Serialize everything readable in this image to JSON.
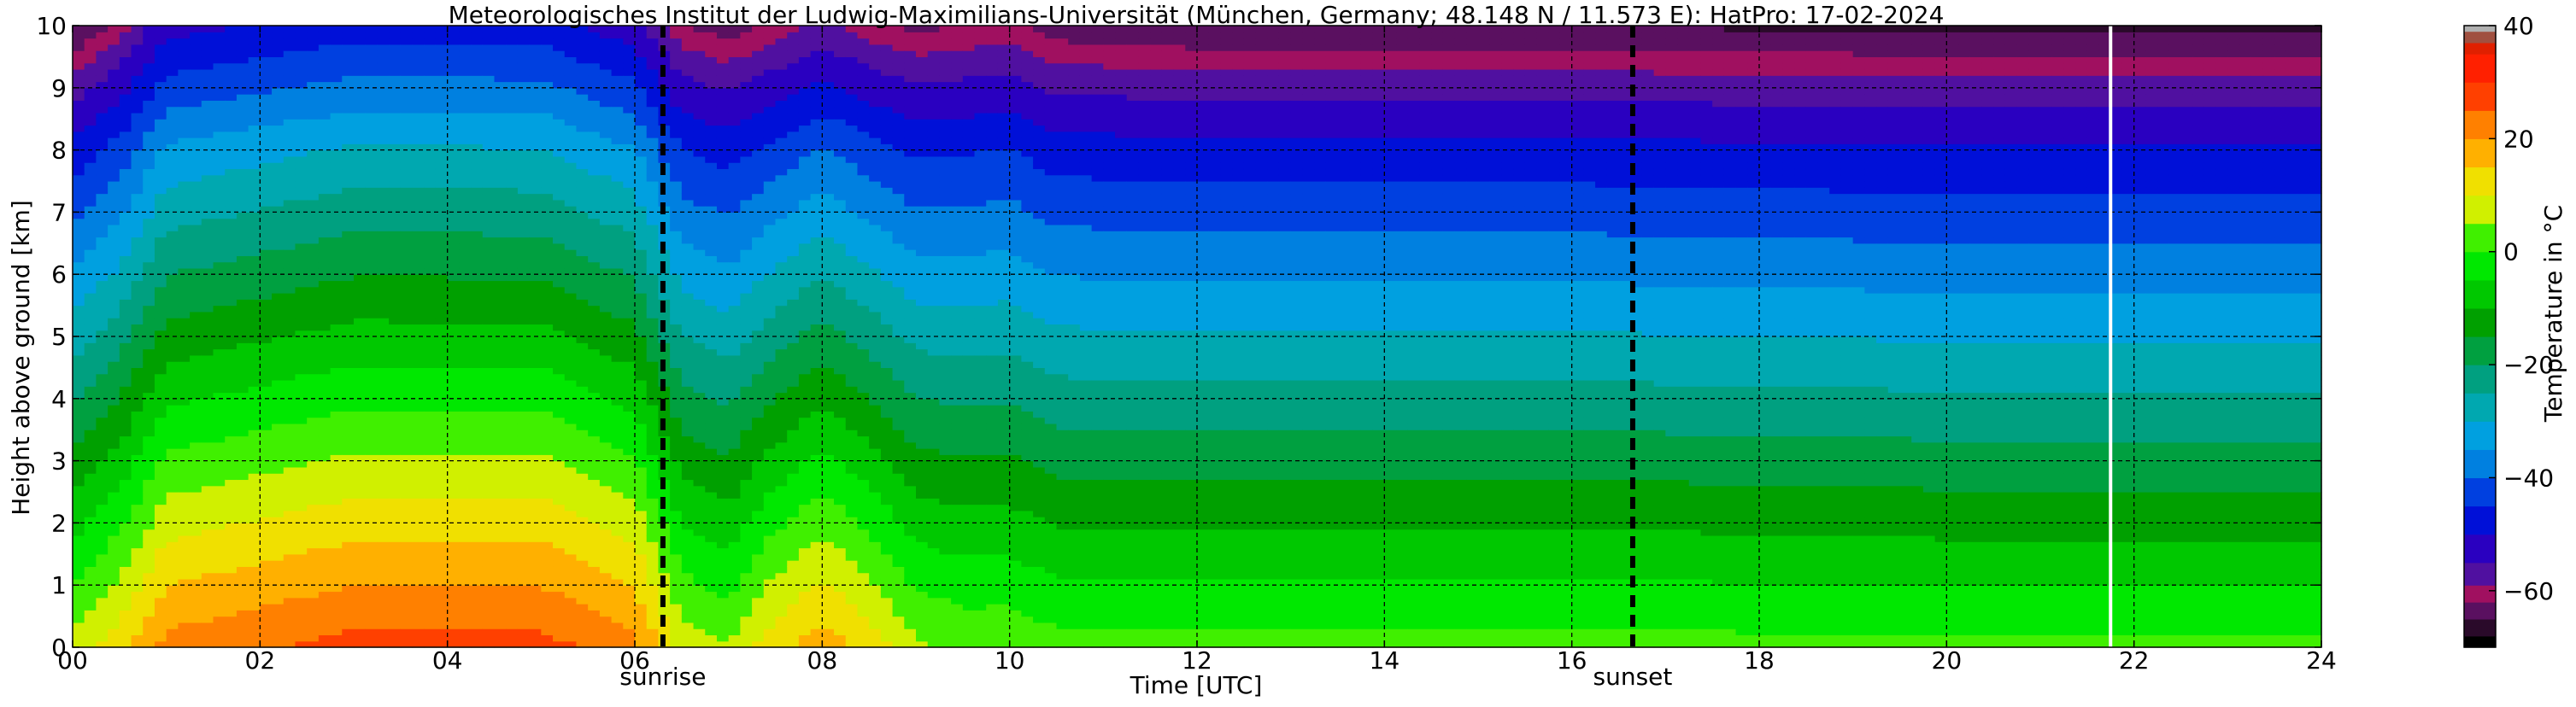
{
  "chart_data": {
    "type": "heatmap",
    "title": "Meteorologisches Institut der Ludwig-Maximilians-Universität (München, Germany; 48.148 N / 11.573 E):    HatPro: 17-02-2024",
    "xlabel": "Time [UTC]",
    "ylabel": "Height above ground [km]",
    "colorbar_label": "Temperature in °C",
    "xlim": [
      0,
      24
    ],
    "ylim": [
      0,
      10
    ],
    "clim": [
      -70,
      40
    ],
    "x_ticks": [
      "00",
      "02",
      "04",
      "06",
      "08",
      "10",
      "12",
      "14",
      "16",
      "18",
      "20",
      "22",
      "24"
    ],
    "y_ticks": [
      "0",
      "1",
      "2",
      "3",
      "4",
      "5",
      "6",
      "7",
      "8",
      "9",
      "10"
    ],
    "colorbar_ticks": [
      "40",
      "20",
      "0",
      "−20",
      "−40",
      "−60"
    ],
    "colorbar_tick_values": [
      40,
      20,
      0,
      -20,
      -40,
      -60
    ],
    "grid": true,
    "colormap": [
      {
        "t": -70,
        "c": "#000000"
      },
      {
        "t": -68,
        "c": "#2a0a2a"
      },
      {
        "t": -65,
        "c": "#5a1060"
      },
      {
        "t": -62,
        "c": "#a01060"
      },
      {
        "t": -59,
        "c": "#5010a0"
      },
      {
        "t": -55,
        "c": "#2a00c0"
      },
      {
        "t": -50,
        "c": "#0010d8"
      },
      {
        "t": -45,
        "c": "#0040e0"
      },
      {
        "t": -40,
        "c": "#0080e0"
      },
      {
        "t": -35,
        "c": "#00a0e0"
      },
      {
        "t": -30,
        "c": "#00a8b0"
      },
      {
        "t": -25,
        "c": "#00a080"
      },
      {
        "t": -20,
        "c": "#00a040"
      },
      {
        "t": -15,
        "c": "#00a000"
      },
      {
        "t": -10,
        "c": "#00c800"
      },
      {
        "t": -5,
        "c": "#00e800"
      },
      {
        "t": 0,
        "c": "#40f000"
      },
      {
        "t": 5,
        "c": "#d0f000"
      },
      {
        "t": 10,
        "c": "#f0e000"
      },
      {
        "t": 15,
        "c": "#ffb000"
      },
      {
        "t": 20,
        "c": "#ff8000"
      },
      {
        "t": 25,
        "c": "#ff4000"
      },
      {
        "t": 30,
        "c": "#ff2000"
      },
      {
        "t": 35,
        "c": "#e02000"
      },
      {
        "t": 37,
        "c": "#a05040"
      },
      {
        "t": 39,
        "c": "#b0b0b0"
      },
      {
        "t": 40,
        "c": "#d8d8d8"
      }
    ],
    "surface_temperature_profile": {
      "times": [
        0,
        0.5,
        1,
        3,
        5,
        6,
        6.5,
        7,
        7.4,
        8,
        8.5,
        9,
        9.5,
        10,
        10.5,
        12,
        16,
        20,
        24
      ],
      "values": [
        7,
        13,
        22,
        27,
        27,
        22,
        8,
        5,
        12,
        18,
        13,
        6,
        4,
        4,
        2,
        2,
        2,
        1,
        1
      ]
    },
    "lapse_rate_profile": {
      "times": [
        0,
        0.5,
        1,
        6,
        6.5,
        7,
        7.4,
        8,
        8.5,
        9,
        9.5,
        10,
        10.5,
        12,
        24
      ],
      "values": [
        6.9,
        7.0,
        7.0,
        7.1,
        6.6,
        6.5,
        7.0,
        7.2,
        7.0,
        6.5,
        6.2,
        6.1,
        6.2,
        6.3,
        6.3
      ]
    },
    "events": [
      {
        "label": "sunrise",
        "time": 6.3
      },
      {
        "label": "sunset",
        "time": 16.65
      }
    ],
    "data_gap_time": 21.75,
    "time_resolution_hours": 0.125,
    "height_resolution_km": 0.1
  }
}
